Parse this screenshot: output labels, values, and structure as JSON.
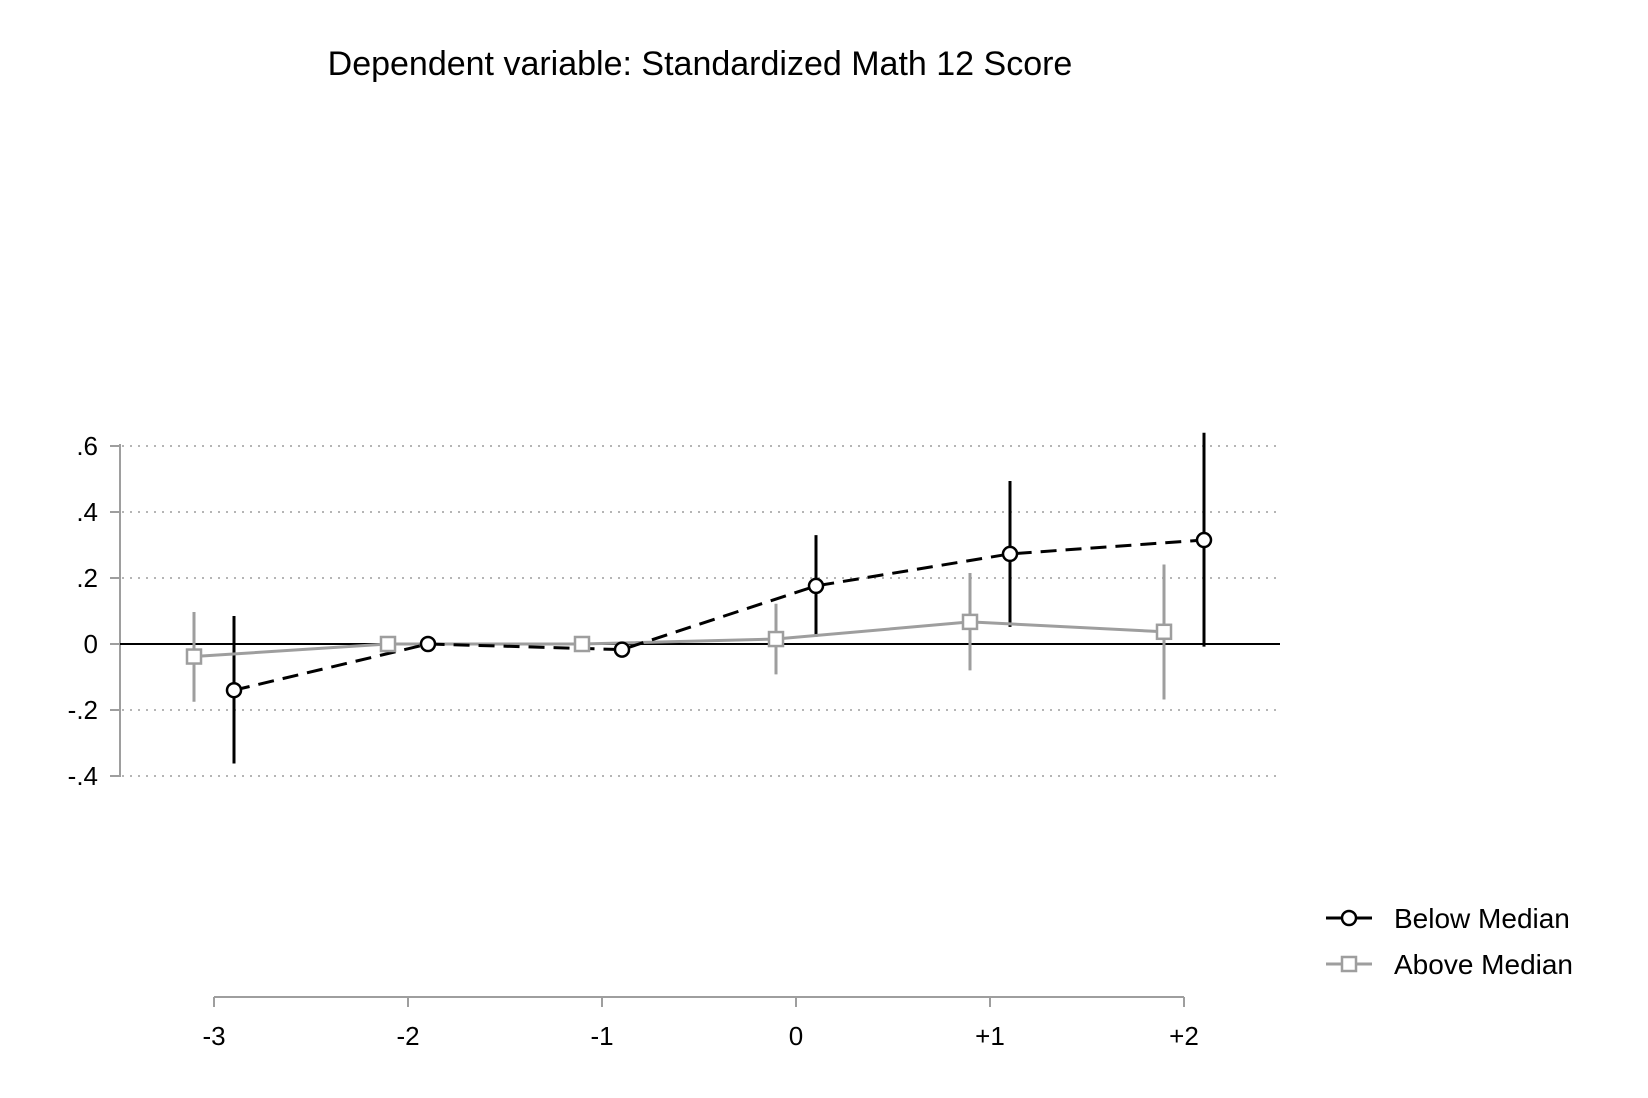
{
  "chart_data": {
    "type": "line",
    "title": "Dependent variable: Standardized Math 12 Score",
    "xlabel": "",
    "ylabel": "",
    "categories": [
      "-3",
      "-2",
      "-1",
      "0",
      "+1",
      "+2"
    ],
    "x": [
      -3,
      -2,
      -1,
      0,
      1,
      2
    ],
    "ylim": [
      -0.4,
      0.6
    ],
    "xlim": [
      -3.5,
      2.5
    ],
    "yticks": [
      -0.4,
      -0.2,
      0,
      0.2,
      0.4,
      0.6
    ],
    "ytick_labels": [
      "-.4",
      "-.2",
      "0",
      ".2",
      ".4",
      ".6"
    ],
    "grid": "horizontal dotted",
    "reference_line_y": 0,
    "legend_position": "right",
    "series": [
      {
        "name": "Below Median",
        "color": "#000000",
        "line_style": "dashed",
        "marker": "circle",
        "values": [
          -0.14,
          0.0,
          -0.017,
          0.176,
          0.273,
          0.315
        ],
        "ci_low": [
          -0.362,
          null,
          -0.035,
          0.022,
          0.052,
          -0.008
        ],
        "ci_high": [
          0.085,
          null,
          0.0,
          0.33,
          0.494,
          0.64
        ]
      },
      {
        "name": "Above Median",
        "color": "#9e9e9e",
        "line_style": "solid",
        "marker": "square",
        "values": [
          -0.038,
          0.0,
          0.0,
          0.015,
          0.067,
          0.037
        ],
        "ci_low": [
          -0.175,
          null,
          null,
          -0.092,
          -0.08,
          -0.168
        ],
        "ci_high": [
          0.097,
          null,
          null,
          0.122,
          0.215,
          0.241
        ]
      }
    ]
  }
}
